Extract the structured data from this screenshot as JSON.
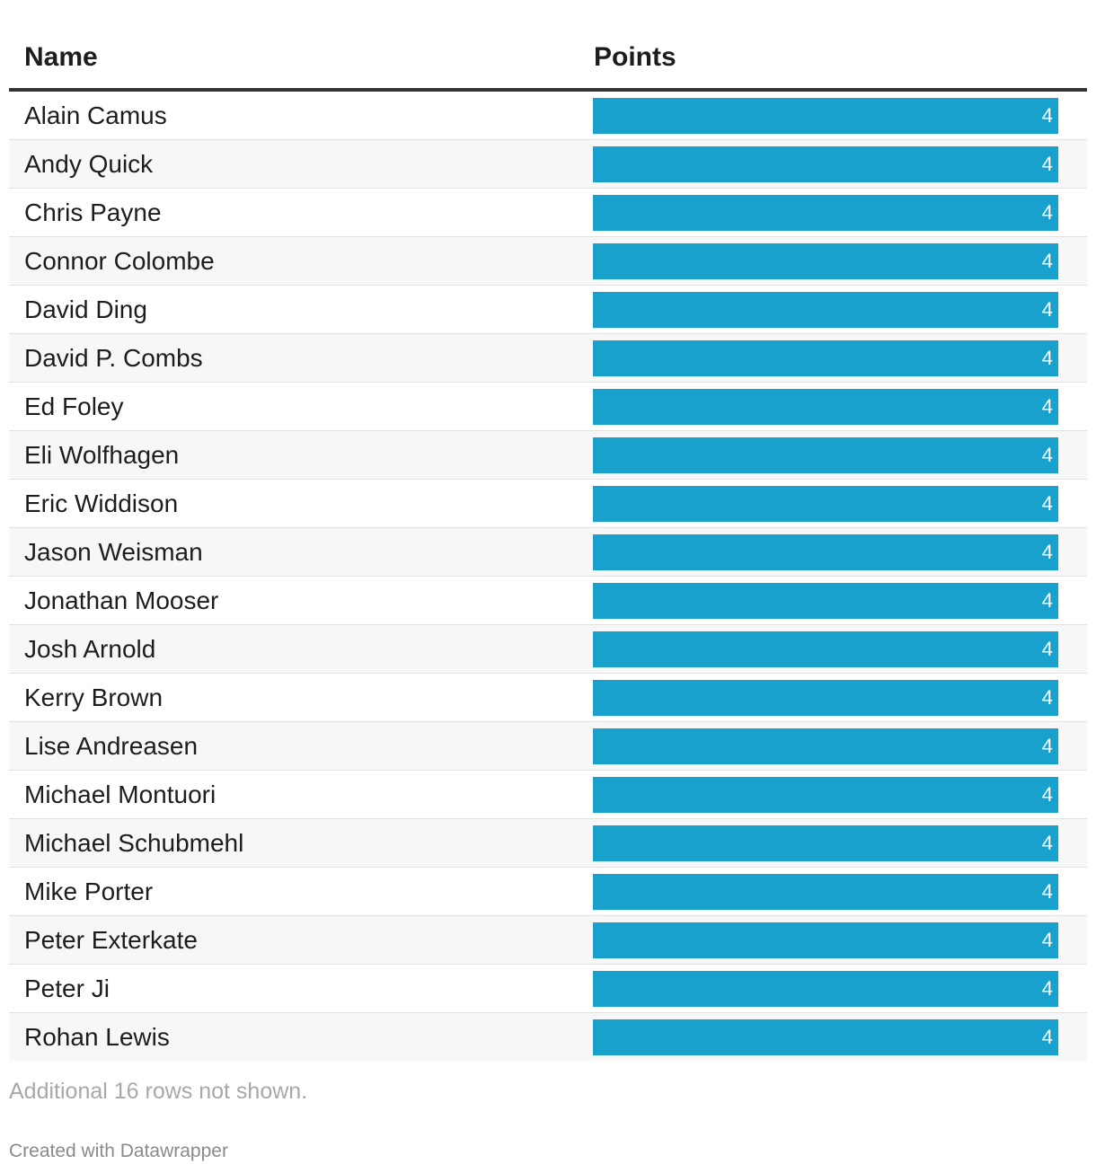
{
  "table": {
    "headers": {
      "name": "Name",
      "points": "Points"
    },
    "bar_color": "#18a1cd"
  },
  "chart_data": {
    "type": "bar",
    "orientation": "horizontal",
    "xlabel": "Points",
    "ylabel": "Name",
    "categories": [
      "Alain Camus",
      "Andy Quick",
      "Chris Payne",
      "Connor Colombe",
      "David Ding",
      "David P. Combs",
      "Ed Foley",
      "Eli Wolfhagen",
      "Eric Widdison",
      "Jason Weisman",
      "Jonathan Mooser",
      "Josh Arnold",
      "Kerry Brown",
      "Lise Andreasen",
      "Michael Montuori",
      "Michael Schubmehl",
      "Mike Porter",
      "Peter Exterkate",
      "Peter Ji",
      "Rohan Lewis"
    ],
    "values": [
      4,
      4,
      4,
      4,
      4,
      4,
      4,
      4,
      4,
      4,
      4,
      4,
      4,
      4,
      4,
      4,
      4,
      4,
      4,
      4
    ],
    "xlim": [
      0,
      4
    ]
  },
  "footer": {
    "note": "Additional 16 rows not shown.",
    "credit": "Created with Datawrapper"
  }
}
